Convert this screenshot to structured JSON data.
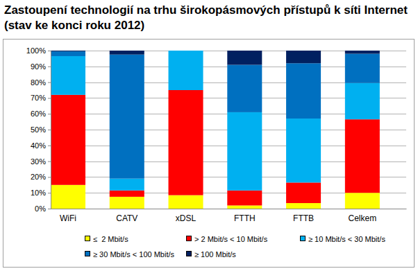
{
  "chart_data": {
    "type": "bar",
    "title": "Zastoupení technologií na trhu širokopásmových přístupů k síti Internet (stav ke konci roku 2012)",
    "categories": [
      "WiFi",
      "CATV",
      "xDSL",
      "FTTH",
      "FTTB",
      "Celkem"
    ],
    "series": [
      {
        "name": "≤  2 Mbit/s",
        "color": "#ffff00",
        "values": [
          15,
          7.5,
          8.5,
          2,
          3.5,
          10
        ]
      },
      {
        "name": "> 2 Mbit/s < 10 Mbit/s",
        "color": "#ff0000",
        "values": [
          57,
          4,
          66.5,
          9.5,
          13,
          46.5
        ]
      },
      {
        "name": "≥ 10 Mbit/s < 30 Mbit/s",
        "color": "#00b0f0",
        "values": [
          24.5,
          7.5,
          25,
          49.5,
          40.5,
          23
        ]
      },
      {
        "name": "≥ 30 Mbit/s < 100 Mbit/s",
        "color": "#0070c0",
        "values": [
          3,
          78.5,
          0,
          30,
          35,
          18.5
        ]
      },
      {
        "name": "≥ 100 Mbit/s",
        "color": "#002060",
        "values": [
          0.5,
          2.5,
          0,
          9,
          8,
          2
        ]
      }
    ],
    "ylim": [
      0,
      100
    ],
    "yticks": [
      {
        "value": 0,
        "label": "0%"
      },
      {
        "value": 10,
        "label": "10%"
      },
      {
        "value": 20,
        "label": "20%"
      },
      {
        "value": 30,
        "label": "30%"
      },
      {
        "value": 40,
        "label": "40%"
      },
      {
        "value": 50,
        "label": "50%"
      },
      {
        "value": 60,
        "label": "60%"
      },
      {
        "value": 70,
        "label": "70%"
      },
      {
        "value": 80,
        "label": "80%"
      },
      {
        "value": 90,
        "label": "90%"
      },
      {
        "value": 100,
        "label": "100%"
      }
    ],
    "stacked": true,
    "grid": true,
    "legend": "bottom"
  }
}
